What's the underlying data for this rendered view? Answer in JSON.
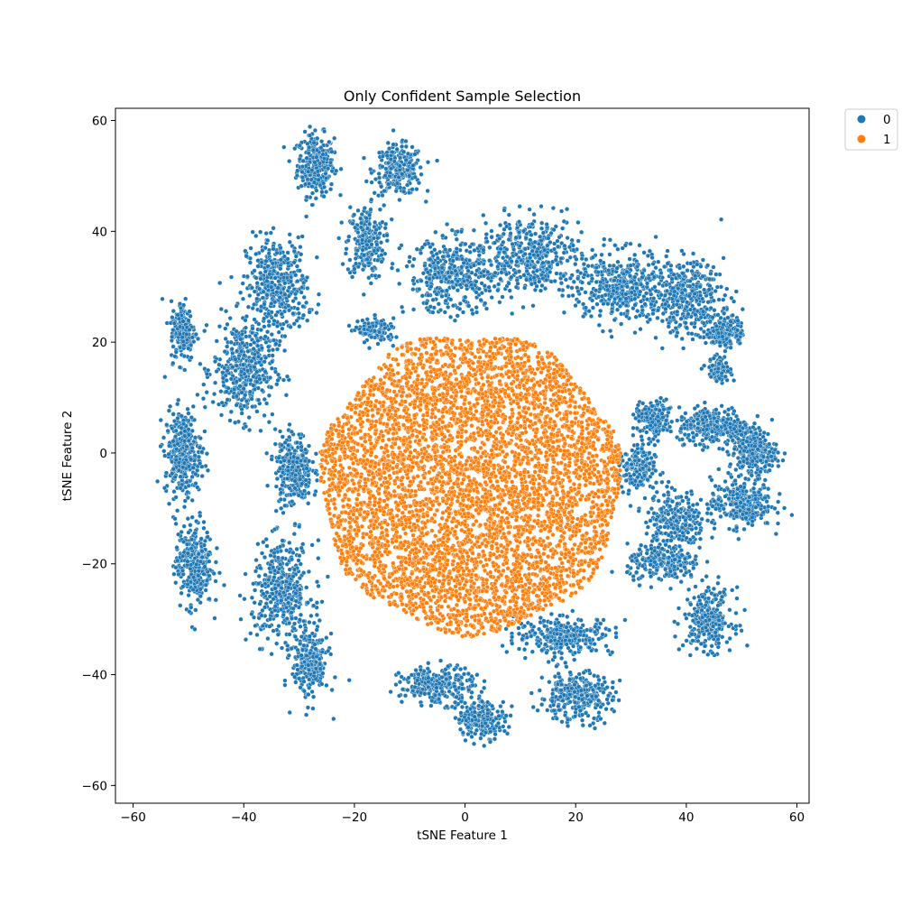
{
  "chart_data": {
    "type": "scatter",
    "title": "Only Confident Sample Selection",
    "xlabel": "tSNE Feature 1",
    "ylabel": "tSNE Feature 2",
    "xlim": [
      -63.2,
      62.2
    ],
    "ylim": [
      -63.2,
      62.2
    ],
    "xticks": [
      -60,
      -40,
      -20,
      0,
      20,
      40,
      60
    ],
    "yticks": [
      -60,
      -40,
      -20,
      0,
      20,
      40,
      60
    ],
    "xtick_labels": [
      "−60",
      "−40",
      "−20",
      "0",
      "20",
      "40",
      "60"
    ],
    "ytick_labels": [
      "−60",
      "−40",
      "−20",
      "0",
      "20",
      "40",
      "60"
    ],
    "grid": false,
    "legend": {
      "placement": "outside-top-right",
      "entries": [
        {
          "label": "0",
          "color": "#1f77b4"
        },
        {
          "label": "1",
          "color": "#ff7f0e"
        }
      ]
    },
    "series": [
      {
        "name": "0",
        "color": "#1f77b4",
        "description_clusters": [
          {
            "center": [
              -27,
              52
            ],
            "spread": [
              3,
              5
            ],
            "n": 300
          },
          {
            "center": [
              -12,
              51
            ],
            "spread": [
              4,
              4
            ],
            "n": 260
          },
          {
            "center": [
              -18,
              38
            ],
            "spread": [
              3,
              6
            ],
            "n": 240
          },
          {
            "center": [
              -34,
              30
            ],
            "spread": [
              5,
              8
            ],
            "n": 420
          },
          {
            "center": [
              -40,
              15
            ],
            "spread": [
              5,
              8
            ],
            "n": 420
          },
          {
            "center": [
              -51,
              22
            ],
            "spread": [
              2,
              5
            ],
            "n": 180
          },
          {
            "center": [
              -51,
              0
            ],
            "spread": [
              3,
              7
            ],
            "n": 320
          },
          {
            "center": [
              -49,
              -20
            ],
            "spread": [
              3,
              7
            ],
            "n": 320
          },
          {
            "center": [
              -31,
              -3
            ],
            "spread": [
              3,
              6
            ],
            "n": 280
          },
          {
            "center": [
              -33,
              -25
            ],
            "spread": [
              5,
              8
            ],
            "n": 420
          },
          {
            "center": [
              -28,
              -38
            ],
            "spread": [
              3,
              6
            ],
            "n": 240
          },
          {
            "center": [
              -5,
              -42
            ],
            "spread": [
              6,
              3
            ],
            "n": 280
          },
          {
            "center": [
              3,
              -48
            ],
            "spread": [
              4,
              3
            ],
            "n": 220
          },
          {
            "center": [
              20,
              -44
            ],
            "spread": [
              6,
              4
            ],
            "n": 300
          },
          {
            "center": [
              18,
              -33
            ],
            "spread": [
              8,
              3
            ],
            "n": 300
          },
          {
            "center": [
              -16,
              22
            ],
            "spread": [
              3,
              2
            ],
            "n": 120
          },
          {
            "center": [
              -2,
              32
            ],
            "spread": [
              8,
              6
            ],
            "n": 420
          },
          {
            "center": [
              12,
              36
            ],
            "spread": [
              8,
              6
            ],
            "n": 420
          },
          {
            "center": [
              28,
              30
            ],
            "spread": [
              8,
              6
            ],
            "n": 420
          },
          {
            "center": [
              40,
              28
            ],
            "spread": [
              6,
              6
            ],
            "n": 360
          },
          {
            "center": [
              47,
              22
            ],
            "spread": [
              3,
              3
            ],
            "n": 160
          },
          {
            "center": [
              46,
              15
            ],
            "spread": [
              2,
              2
            ],
            "n": 100
          },
          {
            "center": [
              34,
              6
            ],
            "spread": [
              3,
              3
            ],
            "n": 160
          },
          {
            "center": [
              31,
              -3
            ],
            "spread": [
              3,
              4
            ],
            "n": 180
          },
          {
            "center": [
              45,
              5
            ],
            "spread": [
              6,
              3
            ],
            "n": 300
          },
          {
            "center": [
              52,
              0
            ],
            "spread": [
              4,
              4
            ],
            "n": 240
          },
          {
            "center": [
              50,
              -9
            ],
            "spread": [
              5,
              4
            ],
            "n": 280
          },
          {
            "center": [
              38,
              -12
            ],
            "spread": [
              5,
              5
            ],
            "n": 260
          },
          {
            "center": [
              36,
              -20
            ],
            "spread": [
              6,
              3
            ],
            "n": 220
          },
          {
            "center": [
              44,
              -30
            ],
            "spread": [
              4,
              5
            ],
            "n": 260
          }
        ]
      },
      {
        "name": "1",
        "color": "#ff7f0e",
        "description_region": {
          "center": [
            1,
            -5.5
          ],
          "radius_x": 27,
          "radius_y": 27,
          "n": 9000
        }
      }
    ]
  }
}
